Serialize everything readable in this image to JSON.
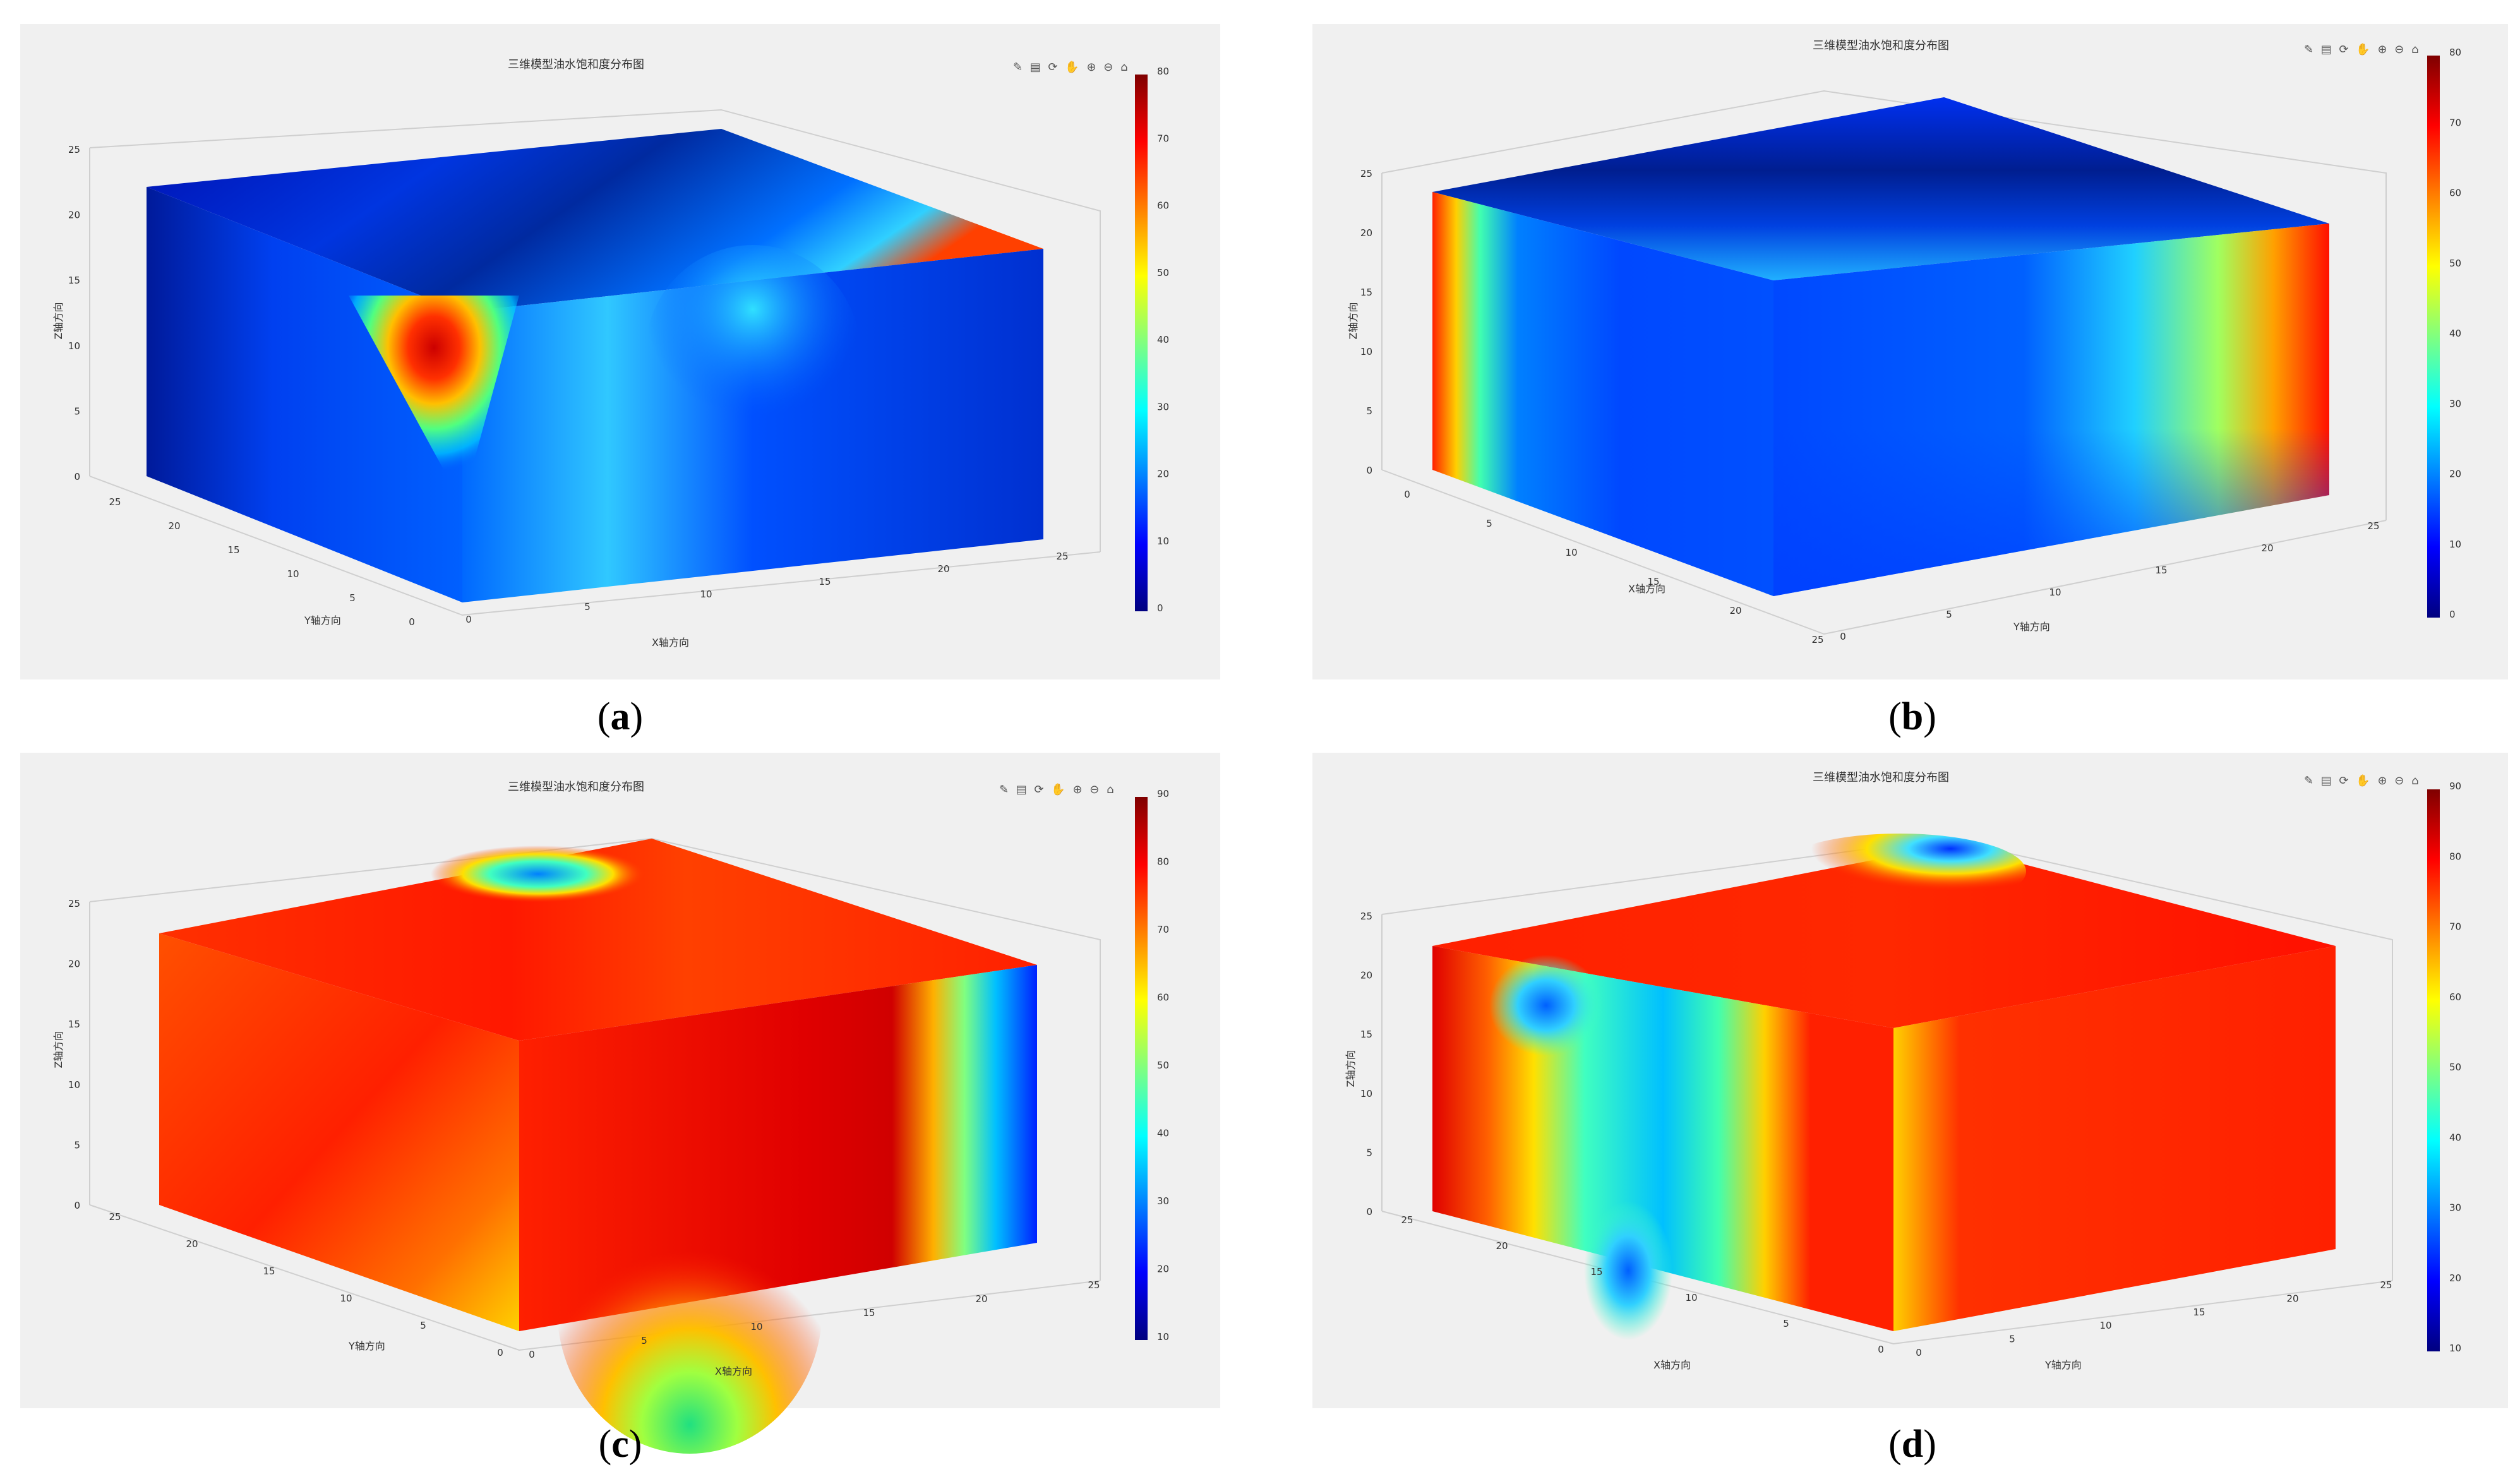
{
  "panels": [
    {
      "id": "a",
      "caption": "a",
      "chart_data": {
        "type": "heatmap",
        "title": "三维模型油水饱和度分布图",
        "xlabel": "X轴方向",
        "ylabel": "Y轴方向",
        "zlabel": "Z轴方向",
        "colormap": "jet",
        "colorbar_ticks": [
          "0",
          "10",
          "20",
          "30",
          "40",
          "50",
          "60",
          "70",
          "80"
        ],
        "colorbar_range": [
          0,
          80
        ],
        "x_ticks": [
          "0",
          "5",
          "10",
          "15",
          "20",
          "25"
        ],
        "y_ticks": [
          "0",
          "5",
          "10",
          "15",
          "20",
          "25"
        ],
        "z_ticks": [
          "0",
          "5",
          "10",
          "15",
          "20",
          "25"
        ],
        "x_range": [
          0,
          25
        ],
        "y_range": [
          0,
          25
        ],
        "z_range": [
          0,
          25
        ]
      }
    },
    {
      "id": "b",
      "caption": "b",
      "chart_data": {
        "type": "heatmap",
        "title": "三维模型油水饱和度分布图",
        "xlabel": "X轴方向",
        "ylabel": "Y轴方向",
        "zlabel": "Z轴方向",
        "colormap": "jet",
        "colorbar_ticks": [
          "0",
          "10",
          "20",
          "30",
          "40",
          "50",
          "60",
          "70",
          "80"
        ],
        "colorbar_range": [
          0,
          80
        ],
        "x_ticks": [
          "0",
          "5",
          "10",
          "15",
          "20",
          "25"
        ],
        "y_ticks": [
          "0",
          "5",
          "10",
          "15",
          "20",
          "25"
        ],
        "z_ticks": [
          "0",
          "5",
          "10",
          "15",
          "20",
          "25"
        ],
        "x_range": [
          0,
          25
        ],
        "y_range": [
          0,
          25
        ],
        "z_range": [
          0,
          25
        ]
      }
    },
    {
      "id": "c",
      "caption": "c",
      "chart_data": {
        "type": "heatmap",
        "title": "三维模型油水饱和度分布图",
        "xlabel": "X轴方向",
        "ylabel": "Y轴方向",
        "zlabel": "Z轴方向",
        "colormap": "jet",
        "colorbar_ticks": [
          "10",
          "20",
          "30",
          "40",
          "50",
          "60",
          "70",
          "80",
          "90"
        ],
        "colorbar_range": [
          5,
          90
        ],
        "x_ticks": [
          "0",
          "5",
          "10",
          "15",
          "20",
          "25"
        ],
        "y_ticks": [
          "0",
          "5",
          "10",
          "15",
          "20",
          "25"
        ],
        "z_ticks": [
          "0",
          "5",
          "10",
          "15",
          "20",
          "25"
        ],
        "x_range": [
          0,
          25
        ],
        "y_range": [
          0,
          25
        ],
        "z_range": [
          0,
          25
        ]
      }
    },
    {
      "id": "d",
      "caption": "d",
      "chart_data": {
        "type": "heatmap",
        "title": "三维模型油水饱和度分布图",
        "xlabel": "X轴方向",
        "ylabel": "Y轴方向",
        "zlabel": "Z轴方向",
        "colormap": "jet",
        "colorbar_ticks": [
          "10",
          "20",
          "30",
          "40",
          "50",
          "60",
          "70",
          "80",
          "90"
        ],
        "colorbar_range": [
          5,
          90
        ],
        "x_ticks": [
          "0",
          "5",
          "10",
          "15",
          "20",
          "25"
        ],
        "y_ticks": [
          "0",
          "5",
          "10",
          "15",
          "20",
          "25"
        ],
        "z_ticks": [
          "0",
          "5",
          "10",
          "15",
          "20",
          "25"
        ],
        "x_range": [
          0,
          25
        ],
        "y_range": [
          0,
          25
        ],
        "z_range": [
          0,
          25
        ]
      }
    }
  ],
  "toolbar_icons": [
    "brush-icon",
    "datatip-icon",
    "rotate-icon",
    "pan-icon",
    "zoom-in-icon",
    "zoom-out-icon",
    "home-icon"
  ],
  "colors": {
    "jet_dark_blue": "#00007f",
    "jet_blue": "#0000ff",
    "jet_cyan": "#00ffff",
    "jet_yellow": "#ffff00",
    "jet_red": "#ff0000",
    "jet_dark_red": "#7f0000",
    "panel_bg": "#f0f0f0"
  }
}
